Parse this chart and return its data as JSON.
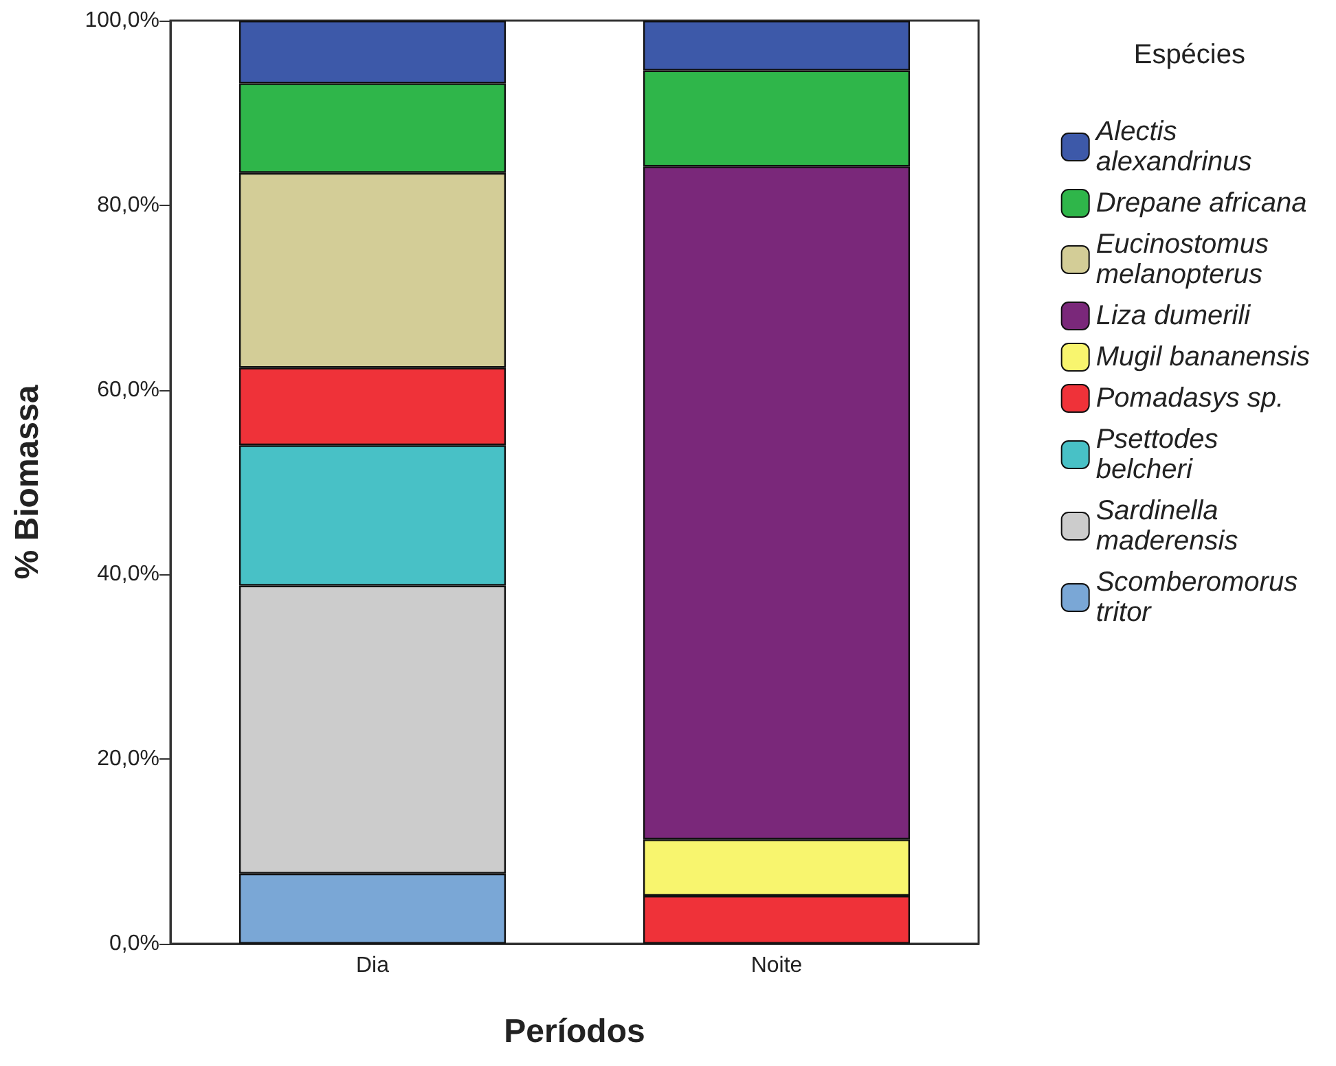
{
  "chart_data": {
    "type": "bar",
    "stacked": true,
    "xlabel": "Períodos",
    "ylabel": "% Biomassa",
    "legend_title": "Espécies",
    "legend": "right",
    "grid": false,
    "categories": [
      "Dia",
      "Noite"
    ],
    "ylim": [
      0,
      100
    ],
    "yticks": [
      {
        "value": 0,
        "label": "0,0%"
      },
      {
        "value": 20,
        "label": "20,0%"
      },
      {
        "value": 40,
        "label": "40,0%"
      },
      {
        "value": 60,
        "label": "60,0%"
      },
      {
        "value": 80,
        "label": "80,0%"
      },
      {
        "value": 100,
        "label": "100,0%"
      }
    ],
    "series": [
      {
        "name": "Scomberomorus tritor",
        "color": "#7aa7d6",
        "values": [
          7.6,
          null
        ]
      },
      {
        "name": "Sardinella maderensis",
        "color": "#cccccc",
        "values": [
          31.2,
          null
        ]
      },
      {
        "name": "Psettodes belcheri",
        "color": "#48c1c6",
        "values": [
          15.2,
          null
        ]
      },
      {
        "name": "Pomadasys sp.",
        "color": "#ef3239",
        "values": [
          8.4,
          5.2
        ]
      },
      {
        "name": "Mugil bananensis",
        "color": "#f8f56e",
        "values": [
          null,
          6.1
        ]
      },
      {
        "name": "Liza dumerili",
        "color": "#7a287a",
        "values": [
          null,
          72.9
        ]
      },
      {
        "name": "Eucinostomus melanopterus",
        "color": "#d3cd97",
        "values": [
          21.1,
          null
        ]
      },
      {
        "name": "Drepane africana",
        "color": "#2fb64a",
        "values": [
          9.7,
          10.4
        ]
      },
      {
        "name": "Alectis alexandrinus",
        "color": "#3d59a9",
        "values": [
          6.8,
          5.4
        ]
      }
    ]
  }
}
